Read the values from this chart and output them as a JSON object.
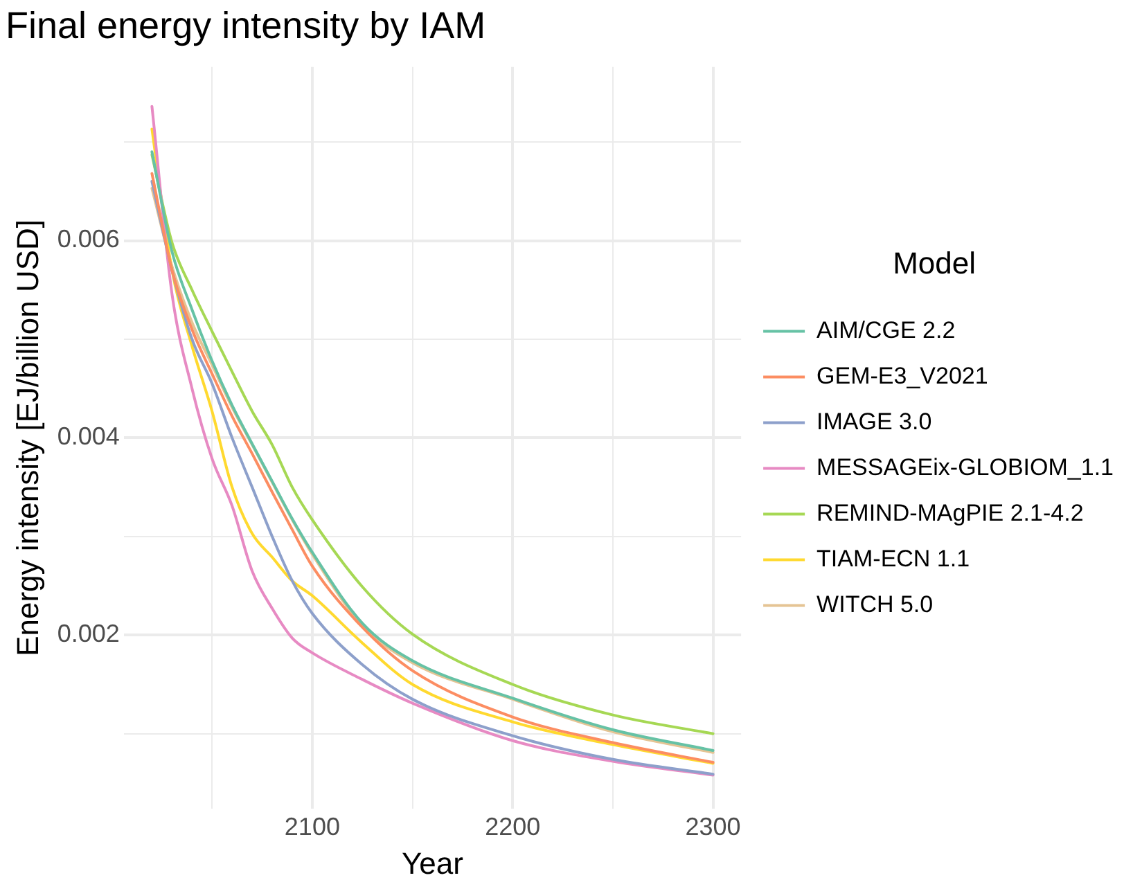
{
  "chart_data": {
    "type": "line",
    "title": "Final energy intensity by IAM",
    "xlabel": "Year",
    "ylabel": "Energy intensity [EJ/billion USD]",
    "legend_title": "Model",
    "x": [
      2020,
      2030,
      2040,
      2050,
      2060,
      2070,
      2080,
      2090,
      2100,
      2125,
      2150,
      2200,
      2250,
      2300
    ],
    "series": [
      {
        "name": "AIM/CGE 2.2",
        "color": "#66c2a5",
        "values": [
          0.0069,
          0.00589,
          0.0053,
          0.00478,
          0.00433,
          0.00394,
          0.00356,
          0.00318,
          0.00284,
          0.00212,
          0.00174,
          0.00136,
          0.00104,
          0.00083
        ]
      },
      {
        "name": "GEM-E3_V2021",
        "color": "#fc8d62",
        "values": [
          0.00668,
          0.0057,
          0.0051,
          0.00465,
          0.00422,
          0.00384,
          0.00345,
          0.00307,
          0.0027,
          0.00208,
          0.00164,
          0.00117,
          0.00091,
          0.00071
        ]
      },
      {
        "name": "IMAGE 3.0",
        "color": "#8da0cb",
        "values": [
          0.0066,
          0.0057,
          0.005,
          0.00455,
          0.004,
          0.0035,
          0.003,
          0.00255,
          0.00222,
          0.0017,
          0.00135,
          0.00098,
          0.00074,
          0.00059
        ]
      },
      {
        "name": "MESSAGEix-GLOBIOM_1.1",
        "color": "#e78ac3",
        "values": [
          0.00736,
          0.00546,
          0.0045,
          0.00379,
          0.00331,
          0.00265,
          0.00227,
          0.00197,
          0.00182,
          0.00155,
          0.00131,
          0.00093,
          0.00072,
          0.00058
        ]
      },
      {
        "name": "REMIND-MAgPIE 2.1-4.2",
        "color": "#a6d854",
        "values": [
          0.00687,
          0.00598,
          0.0055,
          0.00508,
          0.00467,
          0.00427,
          0.00393,
          0.0035,
          0.00317,
          0.00249,
          0.00201,
          0.0015,
          0.00119,
          0.001
        ]
      },
      {
        "name": "TIAM-ECN 1.1",
        "color": "#ffd92f",
        "values": [
          0.00713,
          0.0057,
          0.00493,
          0.00427,
          0.0035,
          0.00303,
          0.00279,
          0.00255,
          0.0024,
          0.00192,
          0.0015,
          0.00112,
          0.00089,
          0.0007
        ]
      },
      {
        "name": "WITCH 5.0",
        "color": "#e5c494",
        "values": [
          0.00653,
          0.00574,
          0.00517,
          0.00474,
          0.00431,
          0.00393,
          0.00355,
          0.00317,
          0.00282,
          0.0021,
          0.00172,
          0.00135,
          0.00102,
          0.00081
        ]
      }
    ],
    "xlim": [
      2006,
      2314
    ],
    "xticks": [
      {
        "value": 2050,
        "label": null
      },
      2100,
      {
        "value": 2150,
        "label": null
      },
      2200,
      {
        "value": 2250,
        "label": null
      },
      2300
    ],
    "ylim": [
      0.00024,
      0.00776
    ],
    "yticks": [
      {
        "value": 0.001,
        "label": null
      },
      0.002,
      {
        "value": 0.003,
        "label": null
      },
      0.004,
      {
        "value": 0.005,
        "label": null
      },
      0.006,
      {
        "value": 0.007,
        "label": null
      }
    ],
    "grid": true,
    "legend": "right",
    "marker": "none",
    "line_style": "solid"
  }
}
